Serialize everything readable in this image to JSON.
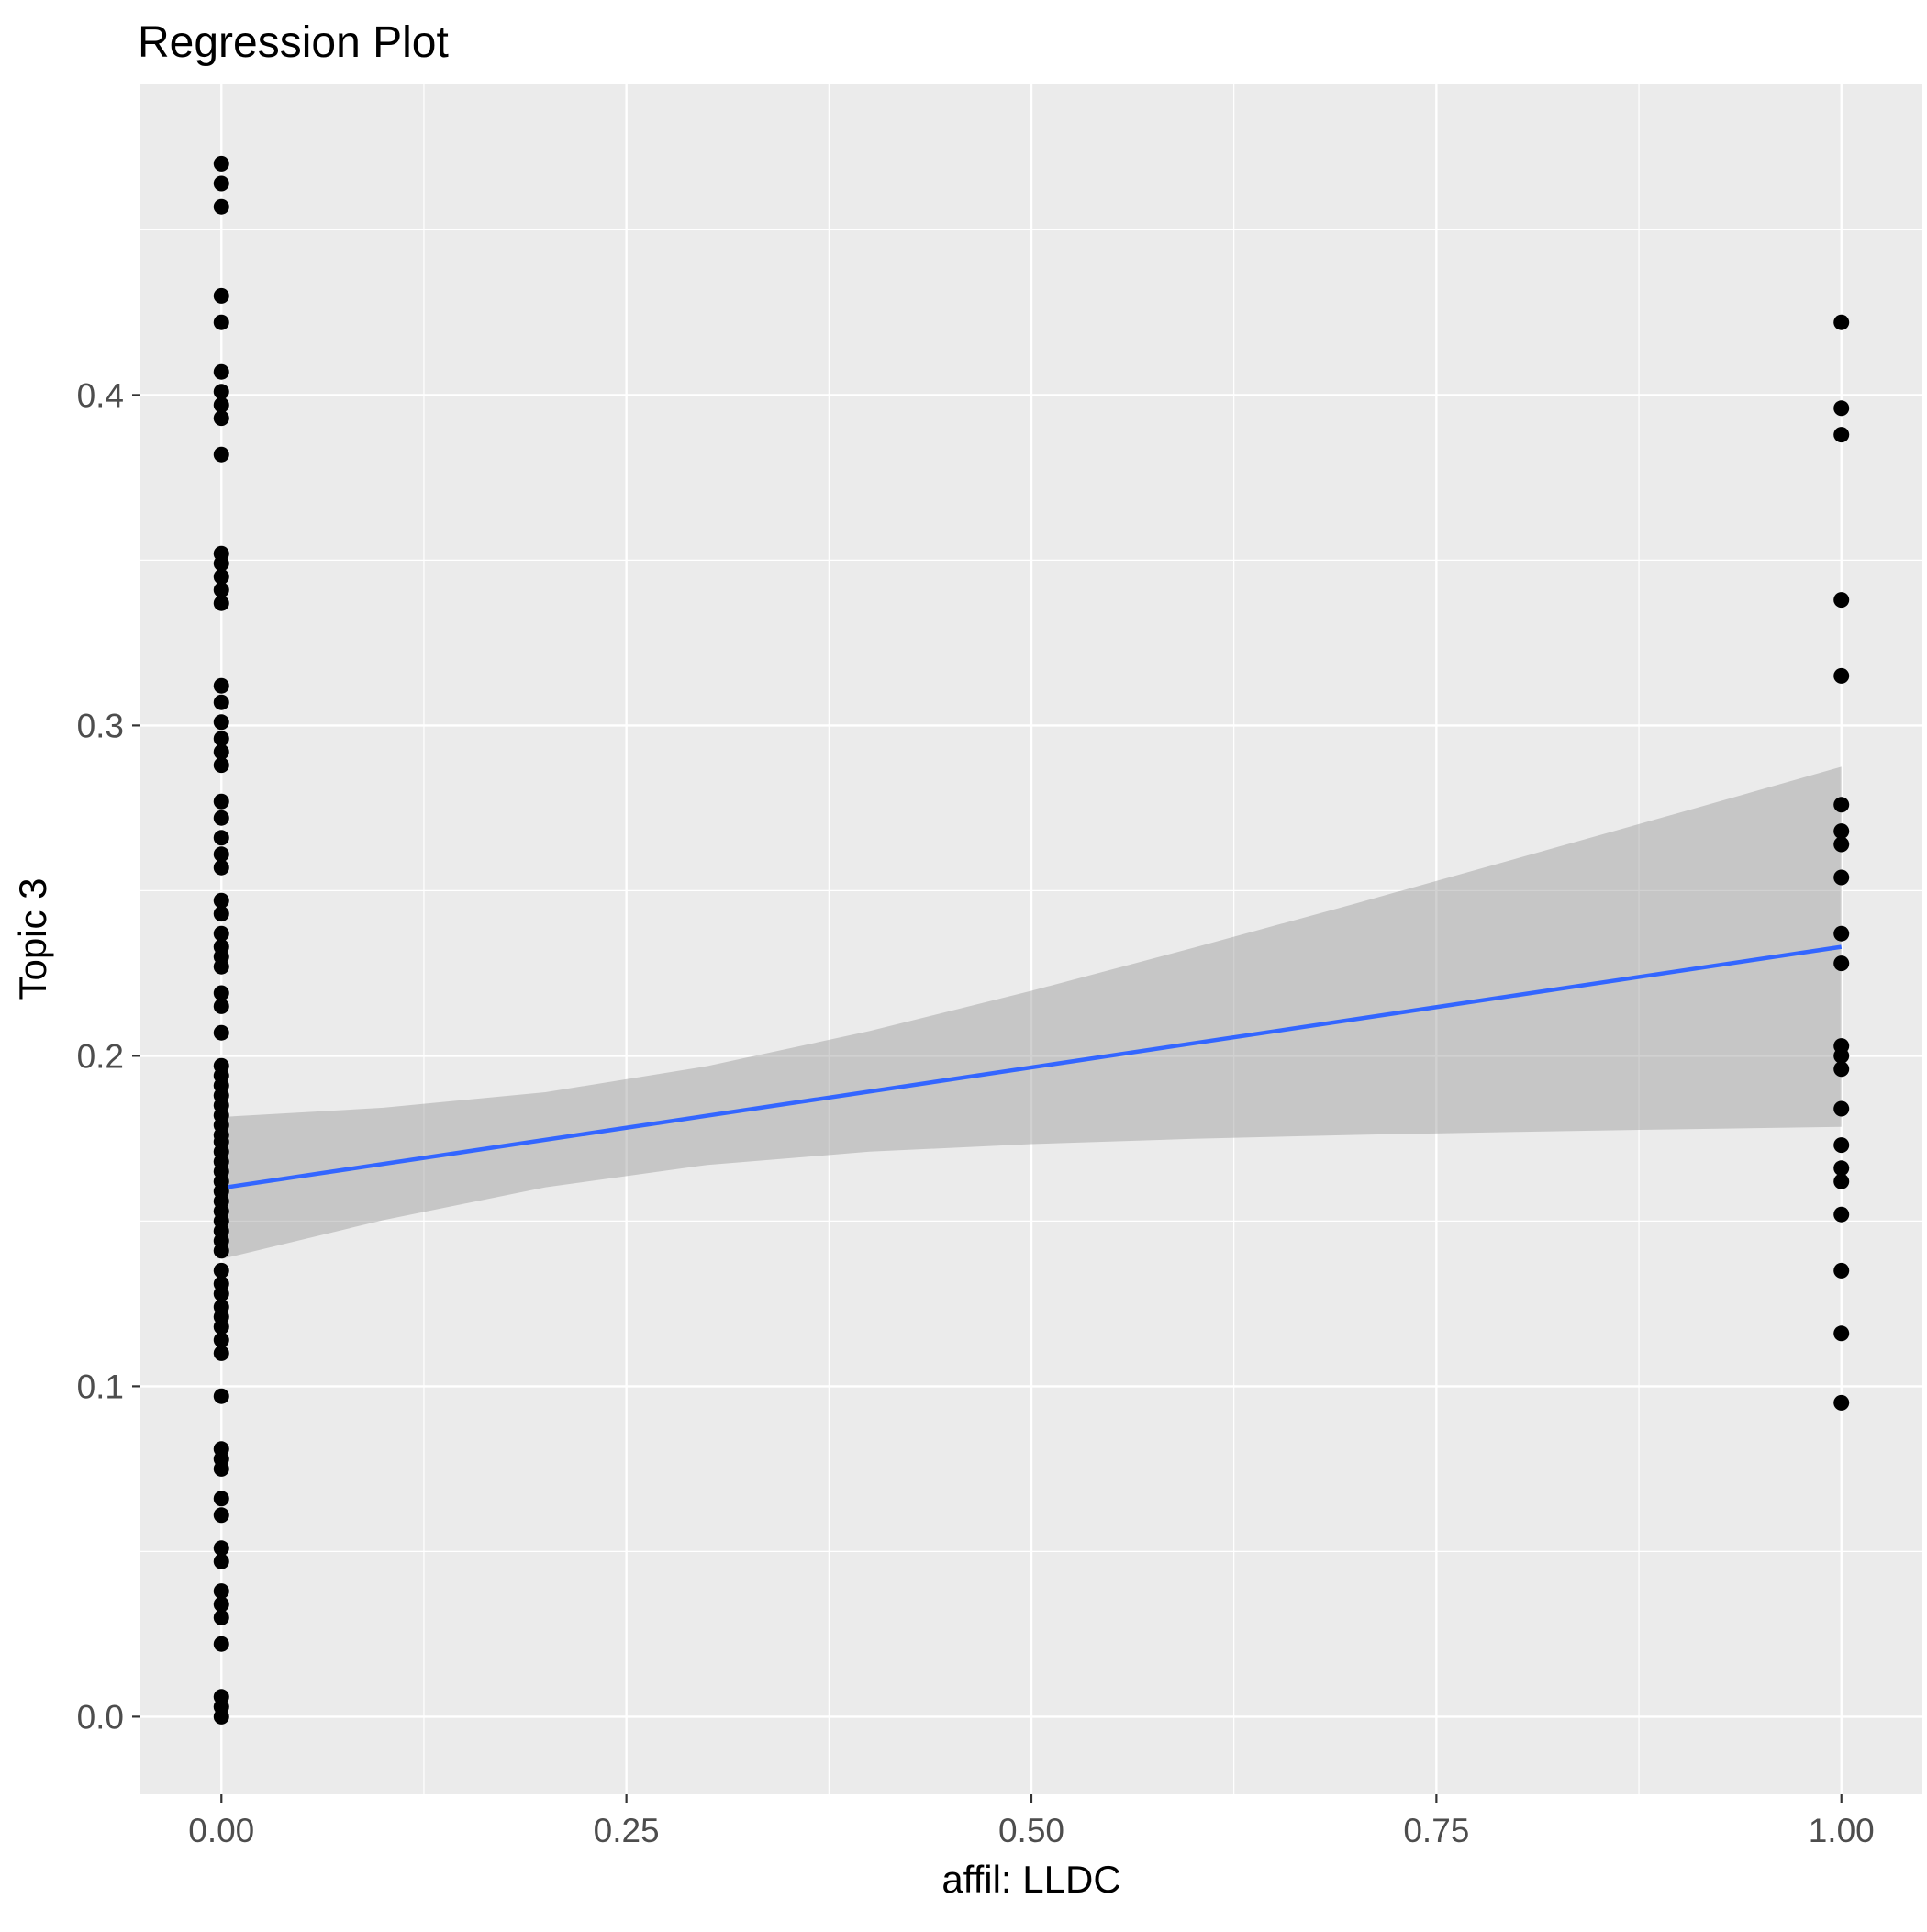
{
  "chart_data": {
    "type": "scatter",
    "title": "Regression Plot",
    "xlabel": "affil: LLDC",
    "ylabel": "Topic 3",
    "xlim": [
      -0.05,
      1.05
    ],
    "ylim": [
      -0.0235,
      0.494
    ],
    "grid": "on",
    "x_ticks": {
      "values": [
        0,
        0.25,
        0.5,
        0.75,
        1.0
      ],
      "labels": [
        "0.00",
        "0.25",
        "0.50",
        "0.75",
        "1.00"
      ]
    },
    "y_ticks": {
      "values": [
        0,
        0.1,
        0.2,
        0.3,
        0.4
      ],
      "labels": [
        "0.0",
        "0.1",
        "0.2",
        "0.3",
        "0.4"
      ]
    },
    "x_minor": [
      0.125,
      0.375,
      0.625,
      0.875
    ],
    "y_minor": [
      0.05,
      0.15,
      0.25,
      0.35,
      0.45
    ],
    "series": [
      {
        "name": "affil LLDC = 0",
        "x": 0,
        "y": [
          0.47,
          0.464,
          0.457,
          0.43,
          0.422,
          0.407,
          0.401,
          0.397,
          0.393,
          0.382,
          0.352,
          0.349,
          0.345,
          0.341,
          0.337,
          0.312,
          0.307,
          0.301,
          0.296,
          0.292,
          0.288,
          0.277,
          0.272,
          0.266,
          0.261,
          0.257,
          0.247,
          0.243,
          0.237,
          0.233,
          0.23,
          0.227,
          0.219,
          0.215,
          0.207,
          0.197,
          0.194,
          0.191,
          0.188,
          0.185,
          0.182,
          0.179,
          0.176,
          0.174,
          0.171,
          0.168,
          0.165,
          0.162,
          0.159,
          0.156,
          0.153,
          0.15,
          0.147,
          0.144,
          0.141,
          0.135,
          0.131,
          0.128,
          0.124,
          0.121,
          0.118,
          0.114,
          0.11,
          0.097,
          0.081,
          0.078,
          0.075,
          0.066,
          0.061,
          0.051,
          0.047,
          0.038,
          0.034,
          0.03,
          0.022,
          0.006,
          0.003,
          0.0
        ]
      },
      {
        "name": "affil LLDC = 1",
        "x": 1,
        "y": [
          0.422,
          0.396,
          0.388,
          0.338,
          0.315,
          0.276,
          0.268,
          0.264,
          0.254,
          0.237,
          0.228,
          0.203,
          0.2,
          0.196,
          0.184,
          0.173,
          0.166,
          0.162,
          0.152,
          0.135,
          0.116,
          0.095
        ]
      }
    ],
    "regression_line": {
      "x": [
        0,
        1
      ],
      "y": [
        0.16,
        0.233
      ],
      "color": "#3366FF"
    },
    "confidence_band": {
      "x": [
        0.0,
        0.1,
        0.2,
        0.3,
        0.4,
        0.5,
        0.6,
        0.7,
        0.8,
        0.9,
        1.0
      ],
      "lower": [
        0.1385,
        0.1503,
        0.1602,
        0.167,
        0.171,
        0.1733,
        0.1749,
        0.1761,
        0.177,
        0.1778,
        0.1785
      ],
      "upper": [
        0.1815,
        0.1843,
        0.189,
        0.1969,
        0.2075,
        0.2197,
        0.2327,
        0.2461,
        0.2598,
        0.2736,
        0.2875
      ],
      "fill": "#999999",
      "opacity": 0.45
    },
    "colors": {
      "panel_bg": "#EBEBEB",
      "grid": "#FFFFFF",
      "point": "#000000",
      "tick_label": "#4D4D4D",
      "axis_tick": "#333333",
      "title": "#000000"
    },
    "legend": "none"
  }
}
